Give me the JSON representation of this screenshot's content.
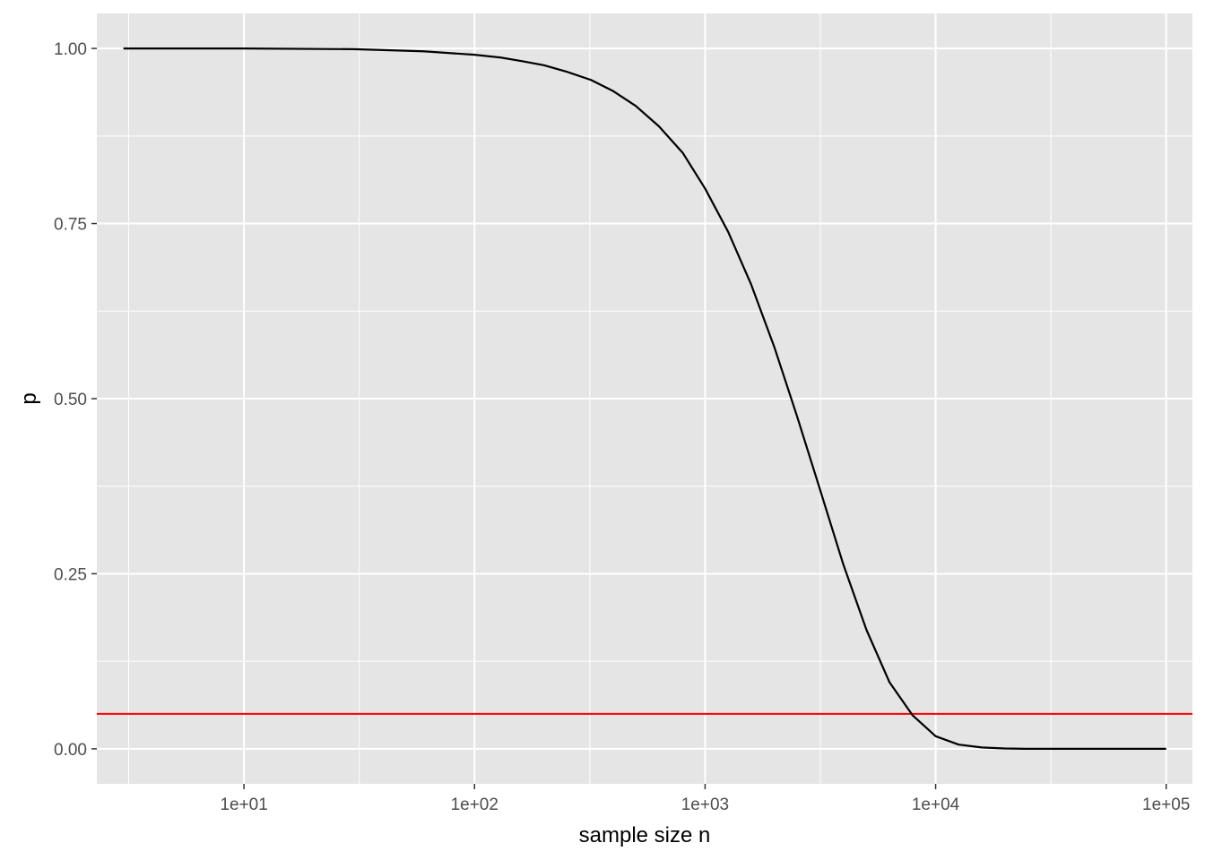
{
  "chart_data": {
    "type": "line",
    "title": "",
    "xlabel": "sample size n",
    "ylabel": "p",
    "x_scale": "log10",
    "xlim": [
      2.3,
      130000
    ],
    "ylim": [
      -0.05,
      1.05
    ],
    "x_ticks": [
      {
        "value": 10,
        "label": "1e+01"
      },
      {
        "value": 100,
        "label": "1e+02"
      },
      {
        "value": 1000,
        "label": "1e+03"
      },
      {
        "value": 10000,
        "label": "1e+04"
      },
      {
        "value": 100000,
        "label": "1e+05"
      }
    ],
    "y_ticks": [
      {
        "value": 0,
        "label": "0.00"
      },
      {
        "value": 0.25,
        "label": "0.25"
      },
      {
        "value": 0.5,
        "label": "0.50"
      },
      {
        "value": 0.75,
        "label": "0.75"
      },
      {
        "value": 1,
        "label": "1.00"
      }
    ],
    "grid": true,
    "background": "#e5e5e5",
    "series": [
      {
        "color": "#000000",
        "x": [
          3,
          10,
          30,
          60,
          100,
          130,
          160,
          200,
          250,
          320,
          400,
          500,
          630,
          800,
          1000,
          1260,
          1580,
          2000,
          2510,
          3160,
          3980,
          5010,
          6310,
          7940,
          10000,
          12590,
          15850,
          19950,
          25000,
          50000,
          100000
        ],
        "y": [
          1.0,
          1.0,
          0.999,
          0.996,
          0.991,
          0.987,
          0.982,
          0.976,
          0.967,
          0.955,
          0.939,
          0.918,
          0.889,
          0.851,
          0.8,
          0.738,
          0.664,
          0.573,
          0.474,
          0.369,
          0.263,
          0.17,
          0.095,
          0.048,
          0.018,
          0.006,
          0.002,
          0.0005,
          0.0,
          0.0,
          0.0
        ]
      }
    ],
    "reference_lines": [
      {
        "orientation": "horizontal",
        "y": 0.05,
        "color": "#ff0000"
      }
    ]
  }
}
